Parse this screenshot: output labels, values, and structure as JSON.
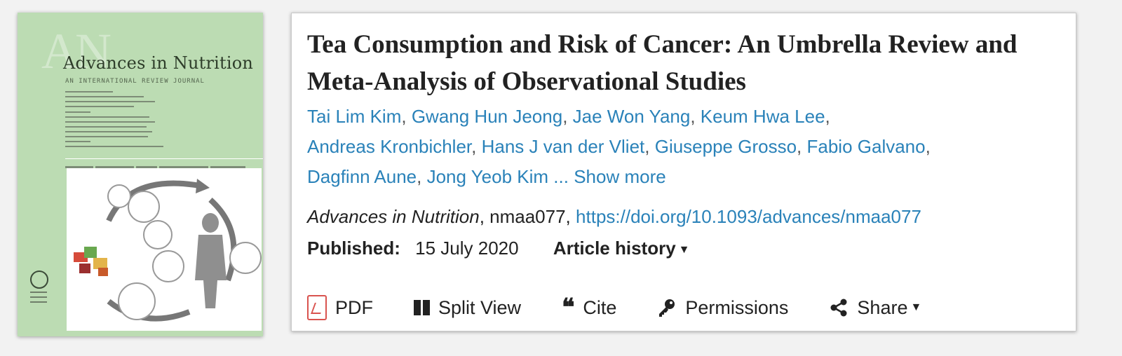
{
  "cover": {
    "journal_title": "Advances in Nutrition",
    "watermark": "AN",
    "subtitle": "AN INTERNATIONAL REVIEW JOURNAL"
  },
  "article": {
    "title": "Tea Consumption and Risk of Cancer: An Umbrella Review and Meta-Analysis of Observational Studies",
    "authors": [
      "Tai Lim Kim",
      "Gwang Hun Jeong",
      "Jae Won Yang",
      "Keum Hwa Lee",
      "Andreas Kronbichler",
      "Hans J van der Vliet",
      "Giuseppe Grosso",
      "Fabio Galvano",
      "Dagfinn Aune",
      "Jong Yeob Kim"
    ],
    "ellipsis": "...",
    "show_more": "Show more",
    "journal": "Advances in Nutrition",
    "article_id": "nmaa077,",
    "doi": "https://doi.org/10.1093/advances/nmaa077",
    "published_label": "Published:",
    "published_date": "15 July 2020",
    "history_label": "Article history"
  },
  "toolbar": {
    "pdf": "PDF",
    "split_view": "Split View",
    "cite": "Cite",
    "permissions": "Permissions",
    "share": "Share"
  },
  "icons": {
    "pdf": "pdf-icon",
    "split": "split-view-icon",
    "cite": "quote-icon",
    "permissions": "key-icon",
    "share": "share-icon",
    "caret": "caret-down-icon"
  },
  "colors": {
    "link": "#2a82b9",
    "title": "#222222",
    "cover_bg": "#bcdcb3",
    "pdf_red": "#d9534f"
  }
}
